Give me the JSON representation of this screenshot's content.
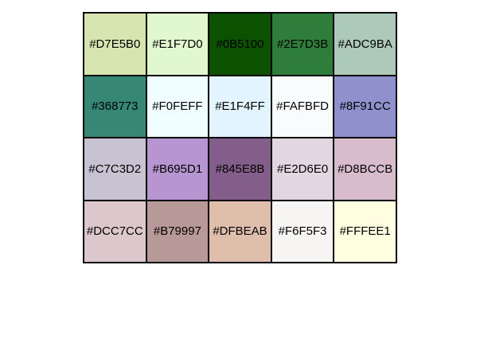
{
  "swatches": [
    {
      "label": "#D7E5B0",
      "color": "#D7E5B0"
    },
    {
      "label": "#E1F7D0",
      "color": "#E1F7D0"
    },
    {
      "label": "#0B5100",
      "color": "#0B5100"
    },
    {
      "label": "#2E7D3B",
      "color": "#2E7D3B"
    },
    {
      "label": "#ADC9BA",
      "color": "#ADC9BA"
    },
    {
      "label": "#368773",
      "color": "#368773"
    },
    {
      "label": "#F0FEFF",
      "color": "#F0FEFF"
    },
    {
      "label": "#E1F4FF",
      "color": "#E1F4FF"
    },
    {
      "label": "#FAFBFD",
      "color": "#FAFBFD"
    },
    {
      "label": "#8F91CC",
      "color": "#8F91CC"
    },
    {
      "label": "#C7C3D2",
      "color": "#C7C3D2"
    },
    {
      "label": "#B695D1",
      "color": "#B695D1"
    },
    {
      "label": "#845E8B",
      "color": "#845E8B"
    },
    {
      "label": "#E2D6E0",
      "color": "#E2D6E0"
    },
    {
      "label": "#D8BCCB",
      "color": "#D8BCCB"
    },
    {
      "label": "#DCC7CC",
      "color": "#DCC7CC"
    },
    {
      "label": "#B79997",
      "color": "#B79997"
    },
    {
      "label": "#DFBEAB",
      "color": "#DFBEAB"
    },
    {
      "label": "#F6F5F3",
      "color": "#F6F5F3"
    },
    {
      "label": "#FFFEE1",
      "color": "#FFFEE1"
    }
  ]
}
